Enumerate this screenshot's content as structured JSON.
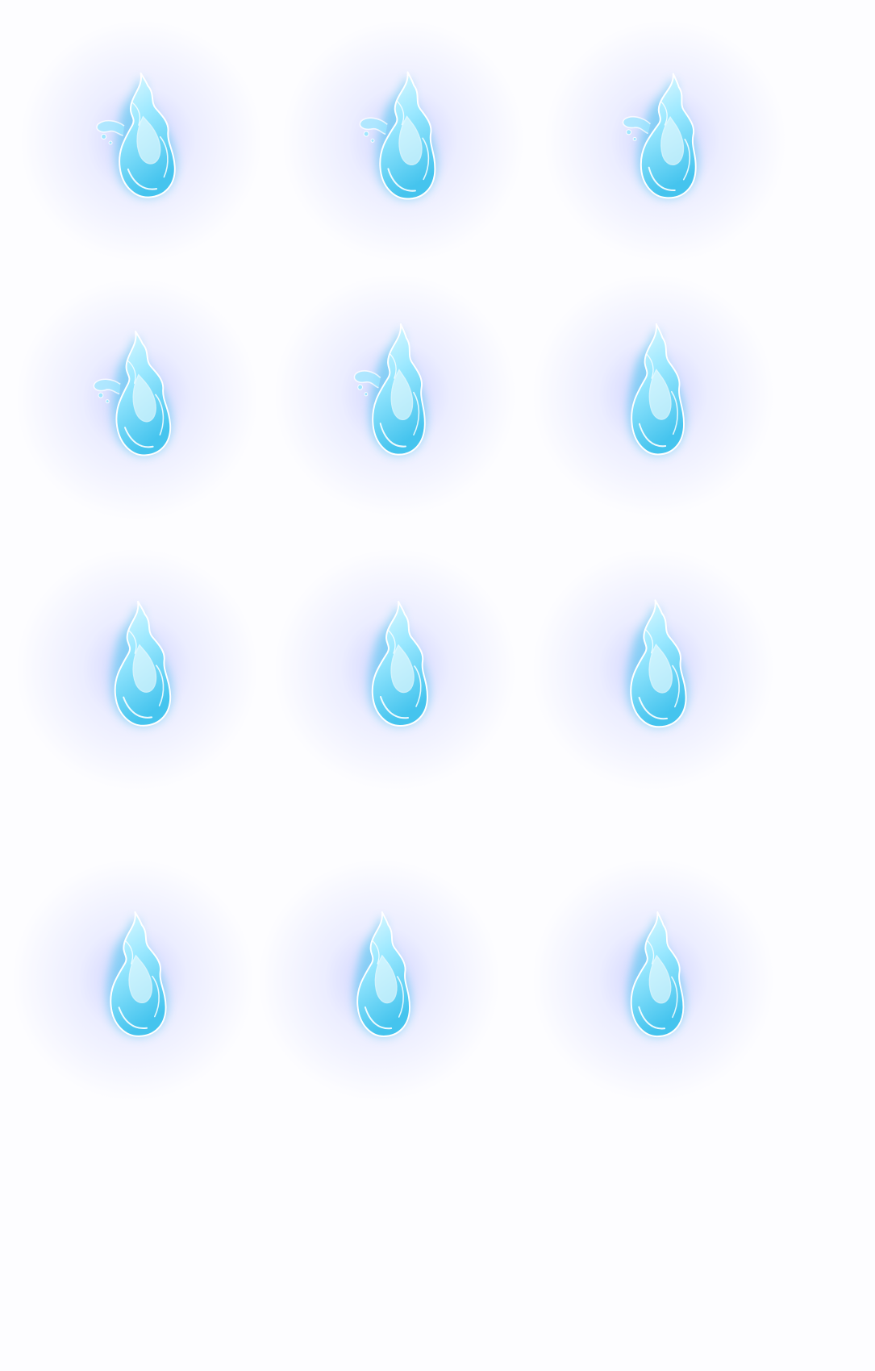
{
  "sprite_sheet": {
    "background_color": "#fdfdff",
    "glow_color": "#6d7bff",
    "flame_light": "#e9fbff",
    "flame_mid": "#9be8ff",
    "flame_deep": "#45c4ee",
    "outline_color": "#ffffff",
    "frames": [
      {
        "name": "flame-frame-1",
        "icon": "blue-flame-icon",
        "wisps": true
      },
      {
        "name": "flame-frame-2",
        "icon": "blue-flame-icon",
        "wisps": true
      },
      {
        "name": "flame-frame-3",
        "icon": "blue-flame-icon",
        "wisps": true
      },
      {
        "name": "flame-frame-4",
        "icon": "blue-flame-icon",
        "wisps": true
      },
      {
        "name": "flame-frame-5",
        "icon": "blue-flame-icon",
        "wisps": true
      },
      {
        "name": "flame-frame-6",
        "icon": "blue-flame-icon",
        "wisps": false
      },
      {
        "name": "flame-frame-7",
        "icon": "blue-flame-icon",
        "wisps": false
      },
      {
        "name": "flame-frame-8",
        "icon": "blue-flame-icon",
        "wisps": false
      },
      {
        "name": "flame-frame-9",
        "icon": "blue-flame-icon",
        "wisps": false
      },
      {
        "name": "flame-frame-10",
        "icon": "blue-flame-icon",
        "wisps": false
      },
      {
        "name": "flame-frame-11",
        "icon": "blue-flame-icon",
        "wisps": false
      },
      {
        "name": "flame-frame-12",
        "icon": "blue-flame-icon",
        "wisps": false
      }
    ]
  }
}
